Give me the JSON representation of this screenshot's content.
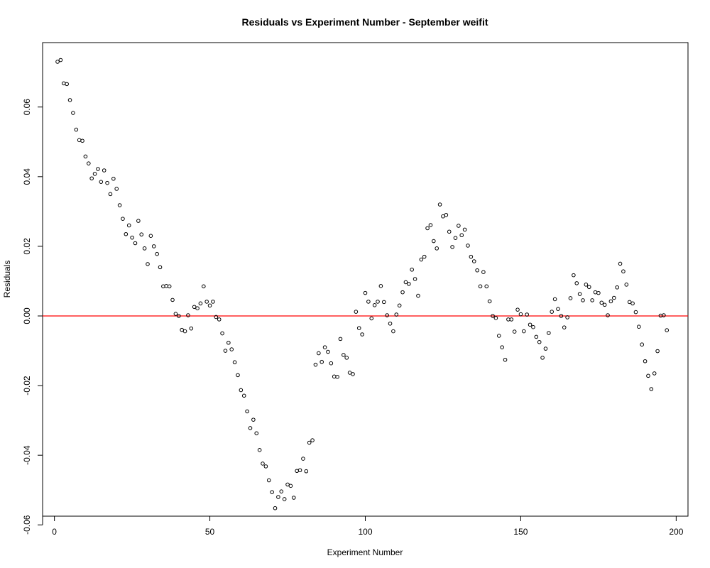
{
  "chart_data": {
    "type": "scatter",
    "title": "Residuals vs Experiment Number - September weifit",
    "xlabel": "Experiment Number",
    "ylabel": "Residuals",
    "xlim": [
      -3.8,
      203.8
    ],
    "ylim": [
      -0.0575,
      0.0785
    ],
    "xticks": [
      0,
      50,
      100,
      150,
      200
    ],
    "xtick_labels": [
      "0",
      "50",
      "100",
      "150",
      "200"
    ],
    "yticks": [
      -0.06,
      -0.04,
      -0.02,
      0.0,
      0.02,
      0.04,
      0.06
    ],
    "ytick_labels": [
      "-0.06",
      "-0.04",
      "-0.02",
      "0.00",
      "0.02",
      "0.04",
      "0.06"
    ],
    "grid": false,
    "legend": "none",
    "reference_line": {
      "y": 0,
      "color": "#ff0000"
    },
    "point_color": "#000000",
    "x": [
      1,
      2,
      3,
      4,
      5,
      6,
      7,
      8,
      9,
      10,
      11,
      12,
      13,
      14,
      15,
      16,
      17,
      18,
      19,
      20,
      21,
      22,
      23,
      24,
      25,
      26,
      27,
      28,
      29,
      30,
      31,
      32,
      33,
      34,
      35,
      36,
      37,
      38,
      39,
      40,
      41,
      42,
      43,
      44,
      45,
      46,
      47,
      48,
      49,
      50,
      51,
      52,
      53,
      54,
      55,
      56,
      57,
      58,
      59,
      60,
      61,
      62,
      63,
      64,
      65,
      66,
      67,
      68,
      69,
      70,
      71,
      72,
      73,
      74,
      75,
      76,
      77,
      78,
      79,
      80,
      81,
      82,
      83,
      84,
      85,
      86,
      87,
      88,
      89,
      90,
      91,
      92,
      93,
      94,
      95,
      96,
      97,
      98,
      99,
      100,
      101,
      102,
      103,
      104,
      105,
      106,
      107,
      108,
      109,
      110,
      111,
      112,
      113,
      114,
      115,
      116,
      117,
      118,
      119,
      120,
      121,
      122,
      123,
      124,
      125,
      126,
      127,
      128,
      129,
      130,
      131,
      132,
      133,
      134,
      135,
      136,
      137,
      138,
      139,
      140,
      141,
      142,
      143,
      144,
      145,
      146,
      147,
      148,
      149,
      150,
      151,
      152,
      153,
      154,
      155,
      156,
      157,
      158,
      159,
      160,
      161,
      162,
      163,
      164,
      165,
      166,
      167,
      168,
      169,
      170,
      171,
      172,
      173,
      174,
      175,
      176,
      177,
      178,
      179,
      180,
      181,
      182,
      183,
      184,
      185,
      186,
      187,
      188,
      189,
      190,
      191,
      192,
      193,
      194,
      195,
      196,
      197
    ],
    "y": [
      0.073,
      0.0735,
      0.0668,
      0.0666,
      0.062,
      0.0583,
      0.0535,
      0.0505,
      0.0503,
      0.0458,
      0.0438,
      0.0395,
      0.0408,
      0.0422,
      0.0385,
      0.0418,
      0.0382,
      0.035,
      0.0394,
      0.0365,
      0.0318,
      0.0279,
      0.0235,
      0.026,
      0.0225,
      0.0209,
      0.0273,
      0.0234,
      0.0194,
      0.0149,
      0.023,
      0.02,
      0.0178,
      0.014,
      0.0085,
      0.0086,
      0.0085,
      0.0046,
      0.0006,
      0.0,
      -0.004,
      -0.0044,
      0.0002,
      -0.0036,
      0.0026,
      0.0022,
      0.0036,
      0.0085,
      0.0041,
      0.003,
      0.0041,
      -0.0003,
      -0.001,
      -0.005,
      -0.01,
      -0.0077,
      -0.0096,
      -0.0133,
      -0.017,
      -0.0213,
      -0.0229,
      -0.0274,
      -0.0322,
      -0.0298,
      -0.0337,
      -0.0385,
      -0.0424,
      -0.0432,
      -0.0472,
      -0.0506,
      -0.0552,
      -0.052,
      -0.0504,
      -0.0526,
      -0.0484,
      -0.0488,
      -0.0522,
      -0.0445,
      -0.0443,
      -0.041,
      -0.0446,
      -0.0364,
      -0.0357,
      -0.014,
      -0.0107,
      -0.0132,
      -0.009,
      -0.0103,
      -0.0136,
      -0.0174,
      -0.0175,
      -0.0066,
      -0.0112,
      -0.012,
      -0.0163,
      -0.0167,
      0.0012,
      -0.0035,
      -0.0053,
      0.0066,
      0.0041,
      -0.0007,
      0.0031,
      0.0041,
      0.0086,
      0.004,
      0.0002,
      -0.0022,
      -0.0044,
      0.0004,
      0.003,
      0.0068,
      0.0097,
      0.0092,
      0.0133,
      0.0106,
      0.0058,
      0.0162,
      0.017,
      0.0252,
      0.0261,
      0.0215,
      0.0194,
      0.032,
      0.0286,
      0.029,
      0.0242,
      0.0198,
      0.0224,
      0.0259,
      0.0232,
      0.0248,
      0.0202,
      0.017,
      0.0157,
      0.0131,
      0.0085,
      0.0126,
      0.0085,
      0.0042,
      0.0,
      -0.0006,
      -0.0057,
      -0.009,
      -0.0126,
      -0.001,
      -0.001,
      -0.0045,
      0.0018,
      0.0005,
      -0.0044,
      0.0004,
      -0.0025,
      -0.0032,
      -0.006,
      -0.0075,
      -0.012,
      -0.0094,
      -0.0049,
      0.0012,
      0.0048,
      0.002,
      0.0,
      -0.0033,
      -0.0004,
      0.0051,
      0.0117,
      0.0094,
      0.0063,
      0.0045,
      0.009,
      0.0083,
      0.0045,
      0.0068,
      0.0066,
      0.0038,
      0.0032,
      0.0002,
      0.0042,
      0.0052,
      0.0082,
      0.015,
      0.0128,
      0.009,
      0.004,
      0.0036,
      0.0011,
      -0.0031,
      -0.0082,
      -0.013,
      -0.0172,
      -0.021,
      -0.0165,
      -0.0101,
      0.0001,
      0.0002,
      -0.0041
    ]
  }
}
